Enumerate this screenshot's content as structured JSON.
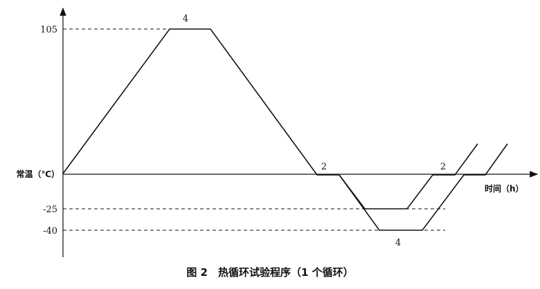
{
  "y_axis": {
    "label": "常温（℃）",
    "ticks": [
      "105",
      "-25",
      "-40"
    ]
  },
  "x_axis": {
    "label": "时间（h）"
  },
  "durations": [
    "4",
    "2",
    "2",
    "4"
  ],
  "caption": "图 2　热循环试验程序（1 个循环）",
  "levels": {
    "high": 105,
    "ambient": 0,
    "low1": -25,
    "low2": -40
  }
}
